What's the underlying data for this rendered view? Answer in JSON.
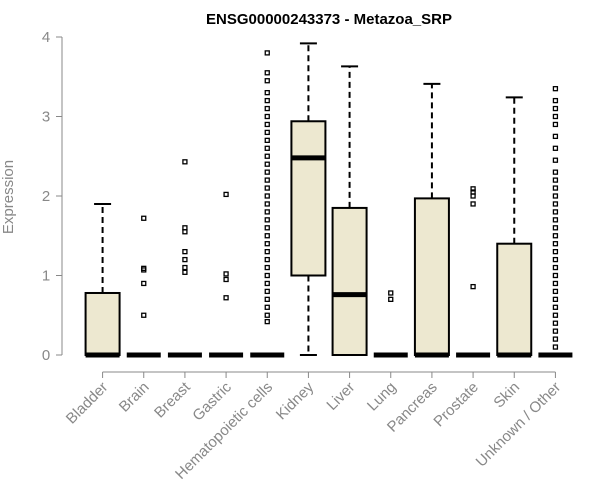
{
  "chart_data": {
    "type": "boxplot",
    "title": "ENSG00000243373 - Metazoa_SRP",
    "xlabel": "",
    "ylabel": "Expression",
    "ylim": [
      0,
      4
    ],
    "yticks": [
      "0",
      "1",
      "2",
      "3",
      "4"
    ],
    "box_color": "#ede8d0",
    "categories": [
      "Bladder",
      "Brain",
      "Breast",
      "Gastric",
      "Hematopoietic cells",
      "Kidney",
      "Liver",
      "Lung",
      "Pancreas",
      "Prostate",
      "Skin",
      "Unknown / Other"
    ],
    "boxes": [
      {
        "name": "Bladder",
        "min": 0,
        "q1": 0,
        "median": 0,
        "q3": 0.78,
        "max": 1.9,
        "outliers": []
      },
      {
        "name": "Brain",
        "min": 0,
        "q1": 0,
        "median": 0,
        "q3": 0,
        "max": 0,
        "outliers": [
          0.5,
          0.9,
          1.07,
          1.09,
          1.72
        ]
      },
      {
        "name": "Breast",
        "min": 0,
        "q1": 0,
        "median": 0,
        "q3": 0,
        "max": 0,
        "outliers": [
          1.04,
          1.1,
          1.2,
          1.3,
          1.55,
          1.6,
          2.43
        ]
      },
      {
        "name": "Gastric",
        "min": 0,
        "q1": 0,
        "median": 0,
        "q3": 0,
        "max": 0,
        "outliers": [
          0.72,
          0.95,
          1.02,
          2.02
        ]
      },
      {
        "name": "Hematopoietic cells",
        "min": 0,
        "q1": 0,
        "median": 0,
        "q3": 0,
        "max": 0,
        "outliers": [
          0.42,
          0.5,
          0.6,
          0.7,
          0.8,
          0.9,
          1.0,
          1.1,
          1.2,
          1.3,
          1.4,
          1.5,
          1.6,
          1.7,
          1.8,
          1.9,
          2.0,
          2.1,
          2.2,
          2.3,
          2.4,
          2.5,
          2.6,
          2.7,
          2.8,
          2.9,
          3.0,
          3.1,
          3.2,
          3.3,
          3.45,
          3.55,
          3.8
        ]
      },
      {
        "name": "Kidney",
        "min": 0,
        "q1": 1.0,
        "median": 2.48,
        "q3": 2.94,
        "max": 3.92,
        "outliers": []
      },
      {
        "name": "Liver",
        "min": 0,
        "q1": 0,
        "median": 0.76,
        "q3": 1.85,
        "max": 3.63,
        "outliers": []
      },
      {
        "name": "Lung",
        "min": 0,
        "q1": 0,
        "median": 0,
        "q3": 0,
        "max": 0,
        "outliers": [
          0.7,
          0.78
        ]
      },
      {
        "name": "Pancreas",
        "min": 0,
        "q1": 0,
        "median": 0,
        "q3": 1.97,
        "max": 3.41,
        "outliers": []
      },
      {
        "name": "Prostate",
        "min": 0,
        "q1": 0,
        "median": 0,
        "q3": 0,
        "max": 0,
        "outliers": [
          0.86,
          1.9,
          2.0,
          2.05,
          2.09
        ]
      },
      {
        "name": "Skin",
        "min": 0,
        "q1": 0,
        "median": 0,
        "q3": 1.4,
        "max": 3.24,
        "outliers": []
      },
      {
        "name": "Unknown / Other",
        "min": 0,
        "q1": 0,
        "median": 0,
        "q3": 0,
        "max": 0,
        "outliers": [
          0.1,
          0.2,
          0.3,
          0.4,
          0.5,
          0.6,
          0.7,
          0.8,
          0.9,
          1.0,
          1.1,
          1.2,
          1.3,
          1.4,
          1.5,
          1.6,
          1.7,
          1.8,
          1.9,
          2.0,
          2.1,
          2.2,
          2.3,
          2.45,
          2.6,
          2.75,
          2.9,
          3.0,
          3.1,
          3.2,
          3.35
        ]
      }
    ]
  }
}
